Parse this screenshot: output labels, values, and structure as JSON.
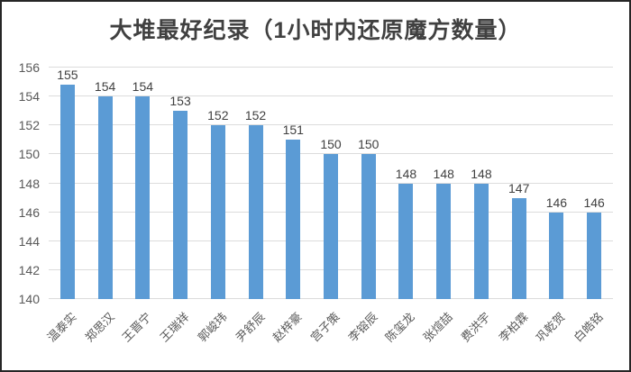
{
  "chart_data": {
    "type": "bar",
    "title": "大堆最好纪录（1小时内还原魔方数量）",
    "categories": [
      "温泰实",
      "郑思汉",
      "王晋宁",
      "王瑞祥",
      "郭峻玮",
      "尹舒辰",
      "赵梓豪",
      "宫子策",
      "李镕辰",
      "陈玺龙",
      "张煊喆",
      "费洪宇",
      "李柏霖",
      "巩乾贺",
      "白皓铭"
    ],
    "values": [
      155,
      154,
      154,
      153,
      152,
      152,
      151,
      150,
      150,
      148,
      148,
      148,
      147,
      146,
      146
    ],
    "xlabel": "",
    "ylabel": "",
    "ylim": [
      140,
      156
    ],
    "yticks": [
      140,
      142,
      144,
      146,
      148,
      150,
      152,
      154,
      156
    ],
    "grid": "horizontal",
    "legend_position": "none",
    "data_labels": true,
    "bar_color": "#5B9BD5",
    "gridline_color": "#DCDCDC"
  }
}
